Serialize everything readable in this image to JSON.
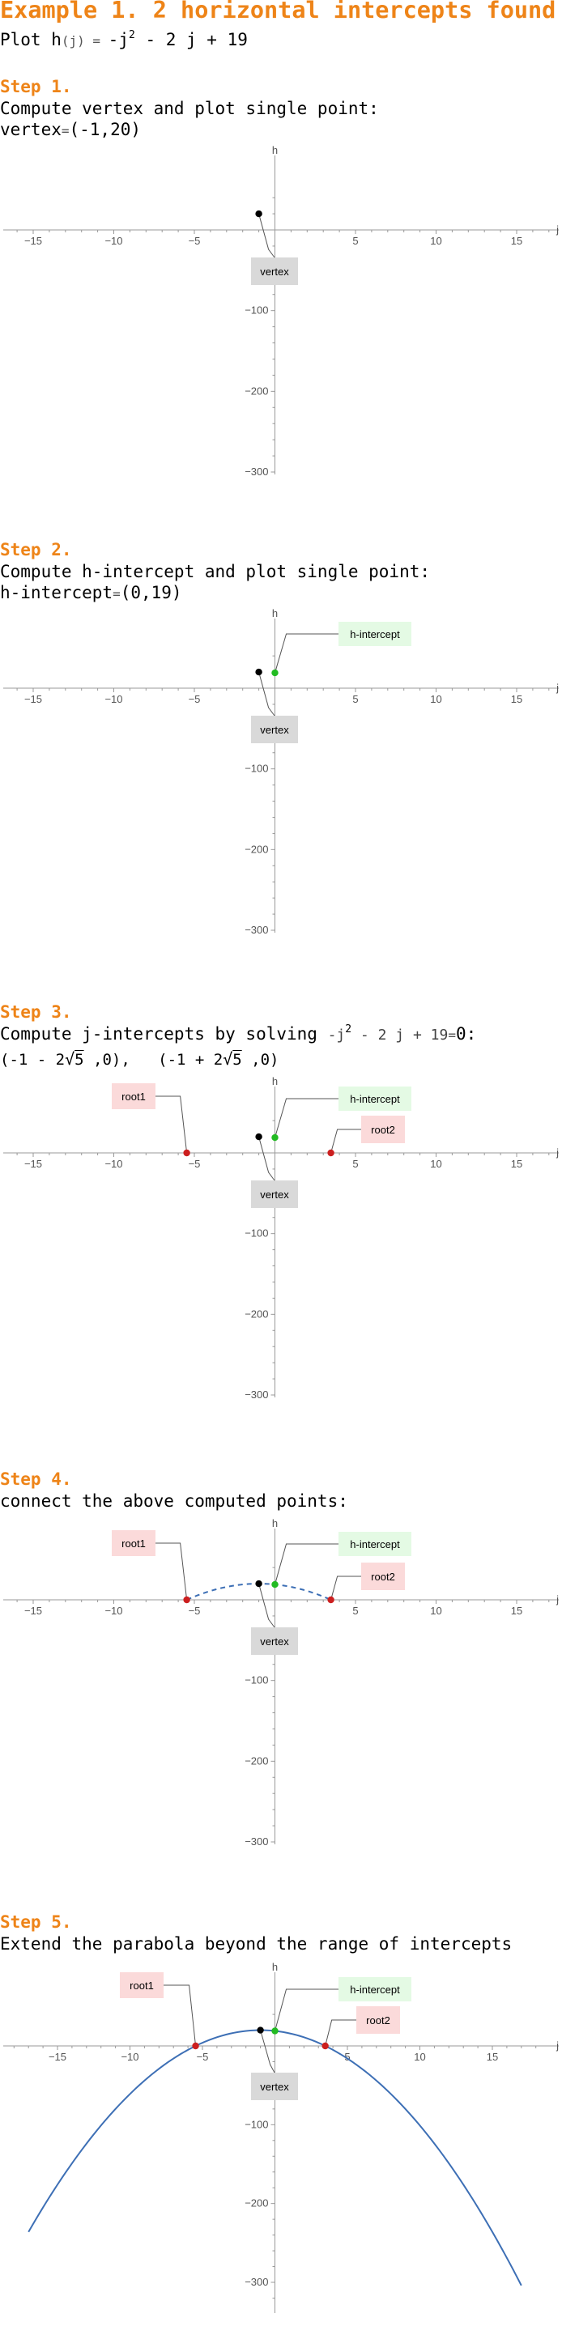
{
  "title": "Example 1. 2 horizontal intercepts found",
  "intro": {
    "prefix": "Plot h",
    "arg": "(j)",
    "eq": " = ",
    "rhs1": "-j",
    "sq": "2",
    "rhs2": " - 2 j + 19"
  },
  "steps": [
    {
      "heading": "Step 1.",
      "text1": "Compute vertex and plot single point:"
    },
    {
      "heading": "Step 2.",
      "text1": "Compute h-intercept and plot single point:"
    },
    {
      "heading": "Step 3.",
      "text1": "Compute j-intercepts by solving "
    },
    {
      "heading": "Step 4.",
      "text1": "connect the above computed points:"
    },
    {
      "heading": "Step 5.",
      "text1": "Extend the parabola beyond the range of intercepts"
    }
  ],
  "vertex_line": {
    "name": "vertex",
    "op": "=",
    "value": "(-1,20)"
  },
  "hint_line": {
    "name": "h-intercept",
    "op": "=",
    "value": "(0,19)"
  },
  "step3_eq": {
    "lhs1": "-j",
    "sq": "2",
    "lhs2": " - 2 j + 19",
    "op": "=",
    "rhs": "0",
    "colon": ":"
  },
  "roots_line": {
    "r1a": "(-1 - 2",
    "r1rad": "5",
    "r1b": " ,0)",
    "sep": ",",
    "r2a": "(-1 + 2",
    "r2rad": "5",
    "r2b": " ,0)"
  },
  "labels": {
    "vertex": "vertex",
    "hint": "h-intercept",
    "root1": "root1",
    "root2": "root2"
  },
  "colors": {
    "accent": "#ee8418",
    "curve": "#3d6fb5",
    "hint_point": "#22bb22",
    "root_point": "#cc1f1f",
    "vertex_point": "#000000",
    "hint_label_bg": "#e4fae4",
    "root_label_bg": "#fbdada",
    "vertex_label_bg": "#d9d9d9"
  },
  "chart_data": [
    {
      "type": "scatter",
      "xlabel": "j",
      "ylabel": "h",
      "xticks": [
        -15,
        -10,
        -5,
        5,
        10,
        15
      ],
      "yticks": [
        -100,
        -200,
        -300
      ],
      "points": [
        {
          "name": "vertex",
          "x": -1,
          "y": 20
        }
      ],
      "curve": "none"
    },
    {
      "type": "scatter",
      "xlabel": "j",
      "ylabel": "h",
      "xticks": [
        -15,
        -10,
        -5,
        5,
        10,
        15
      ],
      "yticks": [
        -100,
        -200,
        -300
      ],
      "points": [
        {
          "name": "vertex",
          "x": -1,
          "y": 20
        },
        {
          "name": "h-intercept",
          "x": 0,
          "y": 19
        }
      ],
      "curve": "none"
    },
    {
      "type": "scatter",
      "xlabel": "j",
      "ylabel": "h",
      "xticks": [
        -15,
        -10,
        -5,
        5,
        10,
        15
      ],
      "yticks": [
        -100,
        -200,
        -300
      ],
      "points": [
        {
          "name": "vertex",
          "x": -1,
          "y": 20
        },
        {
          "name": "h-intercept",
          "x": 0,
          "y": 19
        },
        {
          "name": "root1",
          "x": -5.472,
          "y": 0
        },
        {
          "name": "root2",
          "x": 3.472,
          "y": 0
        }
      ],
      "curve": "none"
    },
    {
      "type": "line",
      "xlabel": "j",
      "ylabel": "h",
      "xticks": [
        -15,
        -10,
        -5,
        5,
        10,
        15
      ],
      "yticks": [
        -100,
        -200,
        -300
      ],
      "points": [
        {
          "name": "vertex",
          "x": -1,
          "y": 20
        },
        {
          "name": "h-intercept",
          "x": 0,
          "y": 19
        },
        {
          "name": "root1",
          "x": -5.472,
          "y": 0
        },
        {
          "name": "root2",
          "x": 3.472,
          "y": 0
        }
      ],
      "curve": "dashed",
      "curve_x_range": [
        -5.472,
        3.472
      ]
    },
    {
      "type": "line",
      "xlabel": "j",
      "ylabel": "h",
      "xticks": [
        -15,
        -10,
        -5,
        5,
        10,
        15
      ],
      "yticks": [
        -100,
        -200,
        -300
      ],
      "points": [
        {
          "name": "vertex",
          "x": -1,
          "y": 20
        },
        {
          "name": "h-intercept",
          "x": 0,
          "y": 19
        },
        {
          "name": "root1",
          "x": -5.472,
          "y": 0
        },
        {
          "name": "root2",
          "x": 3.472,
          "y": 0
        }
      ],
      "curve": "solid",
      "curve_x_range": [
        -17,
        17
      ]
    }
  ]
}
